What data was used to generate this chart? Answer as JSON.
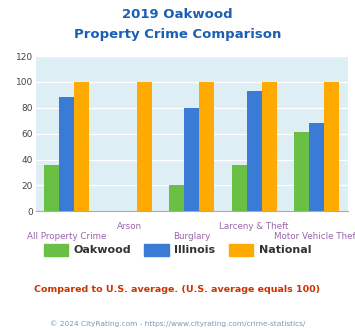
{
  "title_line1": "2019 Oakwood",
  "title_line2": "Property Crime Comparison",
  "categories": [
    "All Property Crime",
    "Arson",
    "Burglary",
    "Larceny & Theft",
    "Motor Vehicle Theft"
  ],
  "oakwood": [
    36,
    0,
    20,
    36,
    61
  ],
  "illinois": [
    88,
    0,
    80,
    93,
    68
  ],
  "national": [
    100,
    100,
    100,
    100,
    100
  ],
  "bar_color_oakwood": "#6abf45",
  "bar_color_illinois": "#3a7bd5",
  "bar_color_national": "#ffaa00",
  "bg_color": "#ddeef5",
  "ylim": [
    0,
    120
  ],
  "yticks": [
    0,
    20,
    40,
    60,
    80,
    100,
    120
  ],
  "xlabel_color": "#9966aa",
  "title_color": "#1a5fb4",
  "subtitle_text": "Compared to U.S. average. (U.S. average equals 100)",
  "subtitle_color": "#cc3300",
  "footer_text": "© 2024 CityRating.com - https://www.cityrating.com/crime-statistics/",
  "footer_color": "#7799bb",
  "legend_labels": [
    "Oakwood",
    "Illinois",
    "National"
  ]
}
